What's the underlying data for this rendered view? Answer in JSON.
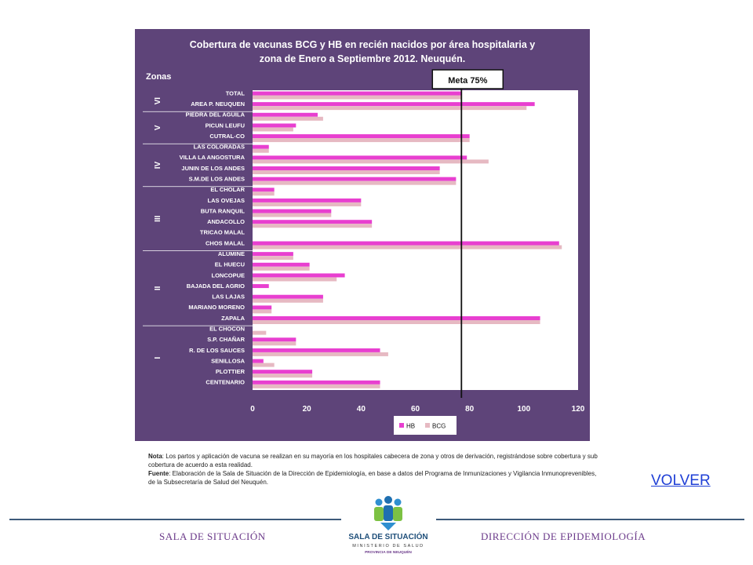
{
  "chart_data": {
    "type": "bar",
    "orientation": "horizontal",
    "title": "Cobertura de vacunas BCG y HB en recién nacidos por  área hospitalaria y zona de Enero a Septiembre  2012. Neuquén.",
    "title_lines": [
      "Cobertura de vacunas BCG y HB en recién nacidos por  área hospitalaria y",
      "zona de Enero a Septiembre  2012. Neuquén."
    ],
    "zones_label": "Zonas",
    "categories": [
      "TOTAL",
      "AREA P. NEUQUEN",
      "PIEDRA DEL AGUILA",
      "PICUN LEUFU",
      "CUTRAL-CO",
      "LAS COLORADAS",
      "VILLA LA ANGOSTURA",
      "JUNIN DE LOS ANDES",
      "S.M.DE LOS ANDES",
      "EL CHOLAR",
      "LAS OVEJAS",
      "BUTA RANQUIL",
      "ANDACOLLO",
      "TRICAO MALAL",
      "CHOS MALAL",
      "ALUMINE",
      "EL HUECU",
      "LONCOPUE",
      "BAJADA DEL AGRIO",
      "LAS LAJAS",
      "MARIANO MORENO",
      "ZAPALA",
      "EL CHOCON",
      "S.P. CHAÑAR",
      "R. DE LOS SAUCES",
      "SENILLOSA",
      "PLOTTIER",
      "CENTENARIO"
    ],
    "series": [
      {
        "name": "HB",
        "color": "#e83fd0",
        "values": [
          77,
          104,
          24,
          16,
          80,
          6,
          79,
          69,
          75,
          8,
          40,
          29,
          44,
          0,
          113,
          15,
          21,
          34,
          6,
          26,
          7,
          106,
          0,
          16,
          47,
          4,
          22,
          47
        ]
      },
      {
        "name": "BCG",
        "color": "#e6b9c2",
        "values": [
          77,
          101,
          26,
          15,
          80,
          6,
          87,
          69,
          75,
          8,
          40,
          29,
          44,
          0,
          114,
          15,
          21,
          31,
          0,
          26,
          7,
          106,
          5,
          16,
          50,
          8,
          22,
          47
        ]
      }
    ],
    "zones": [
      {
        "label": "VI",
        "start": 0,
        "end": 1
      },
      {
        "label": "V",
        "start": 2,
        "end": 4
      },
      {
        "label": "IV",
        "start": 5,
        "end": 8
      },
      {
        "label": "III",
        "start": 9,
        "end": 14
      },
      {
        "label": "II",
        "start": 15,
        "end": 21
      },
      {
        "label": "I",
        "start": 22,
        "end": 27
      }
    ],
    "xlim": [
      0,
      120
    ],
    "xticks": [
      0,
      20,
      40,
      60,
      80,
      100,
      120
    ],
    "reference_line": {
      "value": 77,
      "label": "Meta 75%"
    },
    "legend": {
      "position": "bottom-right",
      "entries": [
        "HB",
        "BCG"
      ]
    },
    "grid": false
  },
  "colors": {
    "panel_bg": "#5e4479",
    "plot_bg": "#ffffff",
    "hb": "#e83fd0",
    "bcg": "#e6b9c2",
    "reference": "#111111",
    "rule": "#3d5a7a",
    "footer_text": "#6b3a8a",
    "link": "#1f3fd6"
  },
  "notes": {
    "nota_label": "Nota",
    "nota_text": ": Los partos  y aplicación de vacuna se realizan en su mayoría en los hospitales cabecera de zona y otros  de derivación, registrándose sobre cobertura y sub cobertura  de acuerdo a esta realidad.",
    "fuente_label": "Fuente",
    "fuente_text": ": Elaboración de la Sala de Situación de la Dirección de Epidemiología, en base a datos del Programa de Inmunizaciones y Vigilancia Inmunoprevenibles,   de la Subsecretaría de Salud del Neuquén."
  },
  "volver_link": "VOLVER",
  "logo": {
    "title": "SALA DE SITUACIÓN",
    "subtitle": "MINISTERIO DE SALUD",
    "province": "PROVINCIA DE NEUQUÉN"
  },
  "footer": {
    "left": "SALA DE SITUACIÓN",
    "right": "DIRECCIÓN DE EPIDEMIOLOGÍA"
  }
}
